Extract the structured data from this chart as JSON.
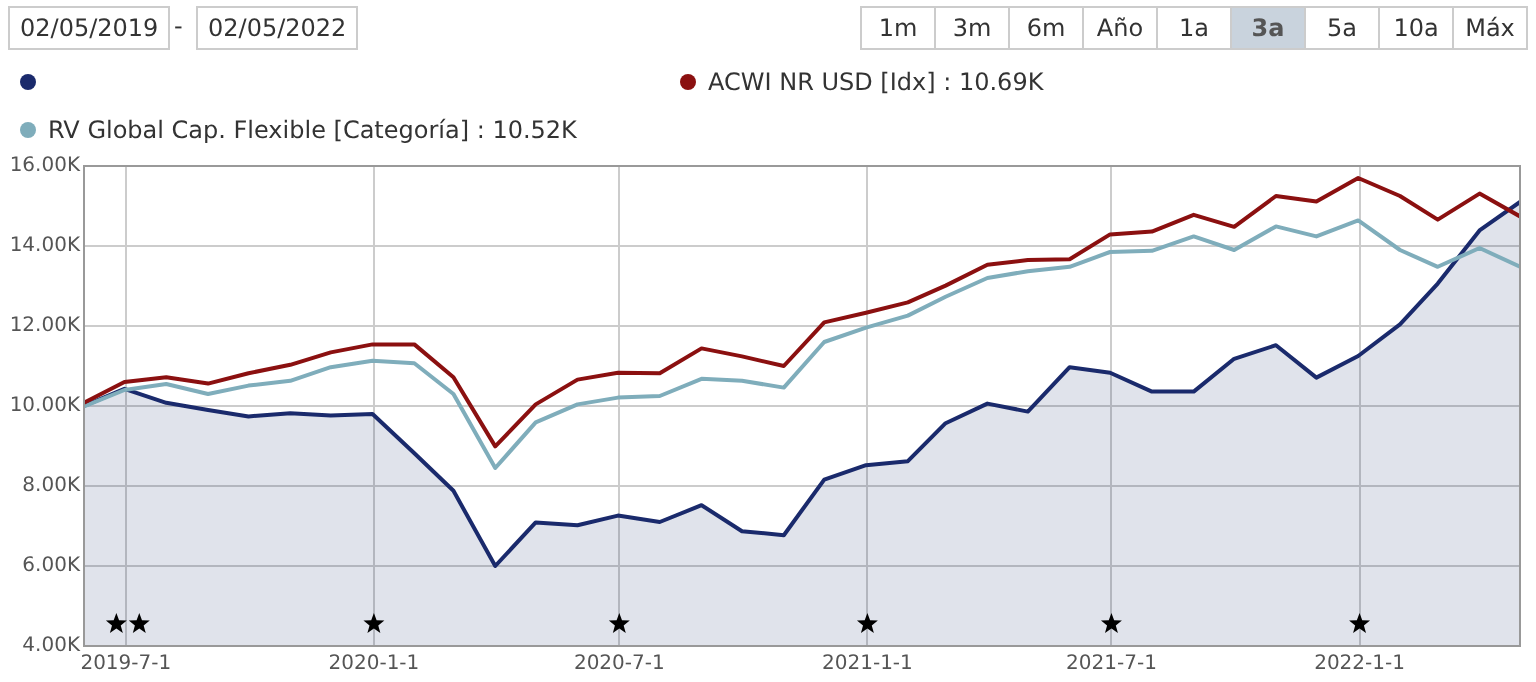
{
  "chart_data": {
    "type": "line",
    "x": [
      "2019-05-31",
      "2019-06-30",
      "2019-07-31",
      "2019-08-31",
      "2019-09-30",
      "2019-10-31",
      "2019-11-30",
      "2019-12-31",
      "2020-01-31",
      "2020-02-29",
      "2020-03-31",
      "2020-04-30",
      "2020-05-31",
      "2020-06-30",
      "2020-07-31",
      "2020-08-31",
      "2020-09-30",
      "2020-10-31",
      "2020-11-30",
      "2020-12-31",
      "2021-01-31",
      "2021-02-28",
      "2021-03-31",
      "2021-04-30",
      "2021-05-31",
      "2021-06-30",
      "2021-07-31",
      "2021-08-31",
      "2021-09-30",
      "2021-10-31",
      "2021-11-30",
      "2021-12-31",
      "2022-01-31",
      "2022-02-28",
      "2022-03-31",
      "2022-04-30"
    ],
    "series": [
      {
        "type": "area",
        "color": "#1a2a6c",
        "values": [
          10000,
          10430,
          10080,
          9900,
          9740,
          9820,
          9760,
          9800,
          8820,
          7880,
          6000,
          7090,
          7020,
          7260,
          7100,
          7520,
          6870,
          6770,
          8160,
          8520,
          8620,
          9570,
          10060,
          9860,
          10970,
          10830,
          10360,
          10360,
          11180,
          11520,
          10710,
          11250,
          12040,
          13060,
          14390,
          15100
        ]
      },
      {
        "name": "ACWI NR USD [Idx] : 10.69K",
        "color": "#8b1010",
        "values": [
          10080,
          10600,
          10720,
          10560,
          10820,
          11030,
          11340,
          11540,
          11540,
          10720,
          8990,
          10040,
          10660,
          10830,
          10820,
          11440,
          11240,
          11000,
          12090,
          12330,
          12590,
          13010,
          13530,
          13650,
          13670,
          14290,
          14360,
          14780,
          14480,
          15250,
          15110,
          15700,
          15250,
          14660,
          15310,
          14740
        ]
      },
      {
        "name": "RV Global Cap. Flexible [Categoría] : 10.52K",
        "color": "#7fadbb",
        "values": [
          9990,
          10400,
          10550,
          10300,
          10510,
          10630,
          10970,
          11130,
          11070,
          10300,
          8450,
          9590,
          10040,
          10210,
          10250,
          10680,
          10630,
          10460,
          11600,
          11960,
          12260,
          12730,
          13200,
          13370,
          13480,
          13850,
          13880,
          14240,
          13900,
          14490,
          14240,
          14640,
          13900,
          13480,
          13950,
          13480
        ]
      },
      {
        "type": "scatter",
        "marker": "star",
        "color": "#000000",
        "x": [
          "2019-06-24",
          "2019-07-11",
          "2020-01-01",
          "2020-07-01",
          "2021-01-01",
          "2021-07-01",
          "2022-01-01"
        ],
        "values": [
          4550,
          4550,
          4550,
          4550,
          4550,
          4550,
          4550
        ]
      }
    ],
    "xlim": [
      "2019-05-31",
      "2022-04-30"
    ],
    "xticks": [
      {
        "value": "2019-07-01",
        "label": "2019-7-1"
      },
      {
        "value": "2020-01-01",
        "label": "2020-1-1"
      },
      {
        "value": "2020-07-01",
        "label": "2020-7-1"
      },
      {
        "value": "2021-01-01",
        "label": "2021-1-1"
      },
      {
        "value": "2021-07-01",
        "label": "2021-7-1"
      },
      {
        "value": "2022-01-01",
        "label": "2022-1-1"
      }
    ],
    "ylim": [
      4000,
      16000
    ],
    "yticks": [
      {
        "value": 4000,
        "label": "4.00K"
      },
      {
        "value": 6000,
        "label": "6.00K"
      },
      {
        "value": 8000,
        "label": "8.00K"
      },
      {
        "value": 10000,
        "label": "10.00K"
      },
      {
        "value": 12000,
        "label": "12.00K"
      },
      {
        "value": 14000,
        "label": "14.00K"
      },
      {
        "value": 16000,
        "label": "16.00K"
      }
    ],
    "grid": true,
    "legend": "top",
    "marker": "none",
    "line_style": "solid",
    "annotations": [
      "02/05/2019",
      "-",
      "02/05/2022",
      "1m",
      "3m",
      "6m",
      "Año",
      "1a",
      "3a",
      "5a",
      "10a",
      "Máx"
    ]
  }
}
